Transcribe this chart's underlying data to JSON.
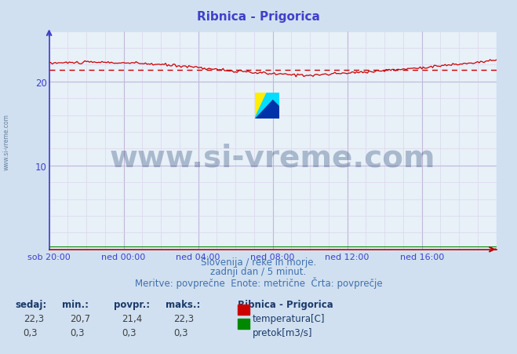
{
  "title": "Ribnica - Prigorica",
  "title_color": "#4040cc",
  "bg_color": "#d0e0f0",
  "plot_bg_color": "#e8f0f8",
  "grid_color_h": "#c8c8e8",
  "grid_color_v": "#c8c8e8",
  "axis_color_x": "#bb0000",
  "axis_color_y": "#4040cc",
  "ylim": [
    0,
    26.0
  ],
  "yticks": [
    10,
    20
  ],
  "xlim": [
    0,
    288
  ],
  "xtick_positions": [
    0,
    48,
    96,
    144,
    192,
    240,
    288
  ],
  "xtick_labels": [
    "sob 20:00",
    "ned 00:00",
    "ned 04:00",
    "ned 08:00",
    "ned 12:00",
    "ned 16:00",
    ""
  ],
  "temp_avg": 21.4,
  "temp_line_color": "#cc0000",
  "flow_line_color": "#008800",
  "avg_line_color": "#cc0000",
  "watermark_text": "www.si-vreme.com",
  "watermark_color": "#1a3a6a",
  "watermark_alpha": 0.3,
  "watermark_fontsize": 28,
  "subtitle1": "Slovenija / reke in morje.",
  "subtitle2": "zadnji dan / 5 minut.",
  "subtitle3": "Meritve: povprečne  Enote: metrične  Črta: povprečje",
  "subtitle_color": "#4070b0",
  "subtitle_fontsize": 8.5,
  "table_header": [
    "sedaj:",
    "min.:",
    "povpr.:",
    "maks.:"
  ],
  "table_temp": [
    "22,3",
    "20,7",
    "21,4",
    "22,3"
  ],
  "table_flow": [
    "0,3",
    "0,3",
    "0,3",
    "0,3"
  ],
  "table_label": "Ribnica - Prigorica",
  "table_label_temp": "temperatura[C]",
  "table_label_flow": "pretok[m3/s]",
  "table_color": "#1a3a6a",
  "left_label_text": "www.si-vreme.com",
  "left_label_color": "#4a6a8a",
  "temp_rect_color": "#cc0000",
  "flow_rect_color": "#008800"
}
